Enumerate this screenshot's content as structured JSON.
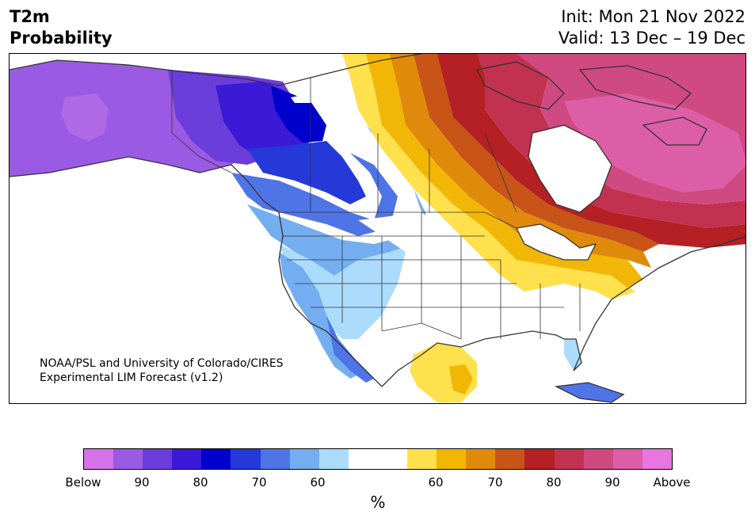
{
  "title": {
    "left_line1": "T2m",
    "left_line2": "Probability",
    "right_line1": "Init: Mon 21 Nov 2022",
    "right_line2": "Valid: 13 Dec – 19 Dec"
  },
  "credit": {
    "line1": "NOAA/PSL and University of Colorado/CIRES",
    "line2": "Experimental LIM Forecast (v1.2)"
  },
  "colorbar": {
    "colors": [
      "#d572ea",
      "#9b5ae3",
      "#6b3ddb",
      "#3b1ad7",
      "#0000cc",
      "#2538d8",
      "#4e74e6",
      "#74aef0",
      "#acdcfb",
      "#ffffff",
      "#ffffff",
      "#ffe04d",
      "#f2b606",
      "#e08a0c",
      "#c85418",
      "#b42023",
      "#c23250",
      "#d04a82",
      "#dc5ea6",
      "#e875e0"
    ],
    "labels": [
      "Below",
      "90",
      "80",
      "70",
      "60",
      "60",
      "70",
      "80",
      "90",
      "Above"
    ],
    "unit": "%"
  },
  "map": {
    "coastline_color": "#333333",
    "border_color": "#333333"
  }
}
